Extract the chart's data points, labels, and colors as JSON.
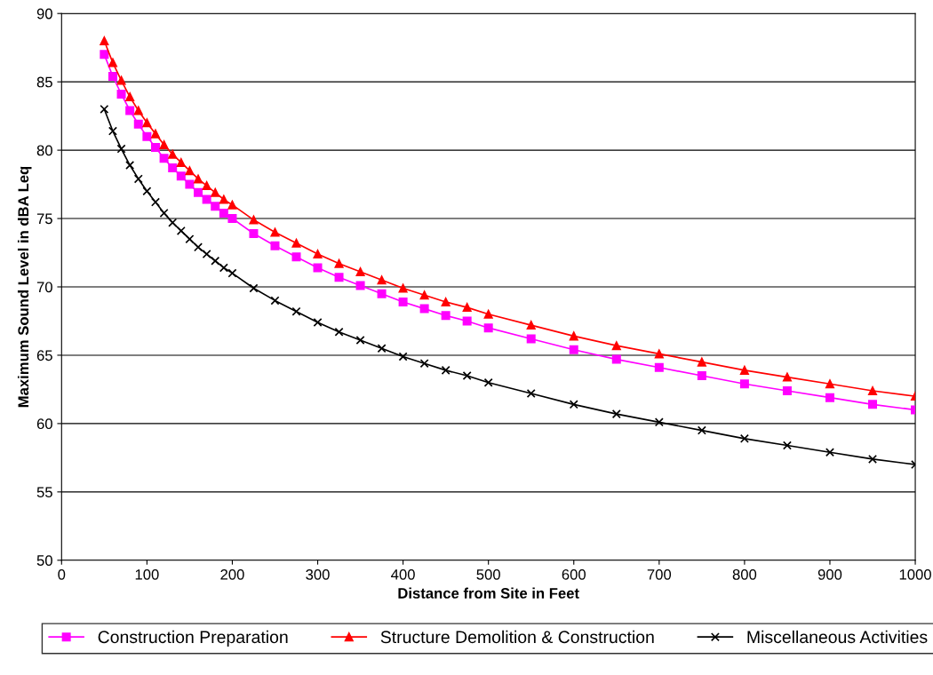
{
  "chart_data": {
    "type": "line",
    "xlabel": "Distance from Site in Feet",
    "ylabel": "Maximum Sound Level in dBA Leq",
    "x": [
      50,
      60,
      70,
      80,
      90,
      100,
      110,
      120,
      130,
      140,
      150,
      160,
      170,
      180,
      190,
      200,
      225,
      250,
      275,
      300,
      325,
      350,
      375,
      400,
      425,
      450,
      475,
      500,
      550,
      600,
      650,
      700,
      750,
      800,
      850,
      900,
      950,
      1000
    ],
    "series": [
      {
        "name": "Construction Preparation",
        "color": "#ff00ff",
        "marker": "square",
        "values": [
          87.0,
          85.4,
          84.1,
          82.9,
          81.9,
          81.0,
          80.2,
          79.4,
          78.7,
          78.1,
          77.5,
          76.9,
          76.4,
          75.9,
          75.4,
          75.0,
          73.9,
          73.0,
          72.2,
          71.4,
          70.7,
          70.1,
          69.5,
          68.9,
          68.4,
          67.9,
          67.5,
          67.0,
          66.2,
          65.4,
          64.7,
          64.1,
          63.5,
          62.9,
          62.4,
          61.9,
          61.4,
          61.0
        ]
      },
      {
        "name": "Structure Demolition & Construction",
        "color": "#ff0000",
        "marker": "triangle",
        "values": [
          88.0,
          86.4,
          85.1,
          83.9,
          82.9,
          82.0,
          81.2,
          80.4,
          79.7,
          79.1,
          78.5,
          77.9,
          77.4,
          76.9,
          76.4,
          76.0,
          74.9,
          74.0,
          73.2,
          72.4,
          71.7,
          71.1,
          70.5,
          69.9,
          69.4,
          68.9,
          68.5,
          68.0,
          67.2,
          66.4,
          65.7,
          65.1,
          64.5,
          63.9,
          63.4,
          62.9,
          62.4,
          62.0
        ]
      },
      {
        "name": "Miscellaneous Activities",
        "color": "#000000",
        "marker": "cross",
        "values": [
          83.0,
          81.4,
          80.1,
          78.9,
          77.9,
          77.0,
          76.2,
          75.4,
          74.7,
          74.1,
          73.5,
          72.9,
          72.4,
          71.9,
          71.4,
          71.0,
          69.9,
          69.0,
          68.2,
          67.4,
          66.7,
          66.1,
          65.5,
          64.9,
          64.4,
          63.9,
          63.5,
          63.0,
          62.2,
          61.4,
          60.7,
          60.1,
          59.5,
          58.9,
          58.4,
          57.9,
          57.4,
          57.0
        ]
      }
    ],
    "xlim": [
      0,
      1000
    ],
    "xticks": [
      0,
      100,
      200,
      300,
      400,
      500,
      600,
      700,
      800,
      900,
      1000
    ],
    "ylim": [
      50,
      90
    ],
    "yticks": [
      50,
      55,
      60,
      65,
      70,
      75,
      80,
      85,
      90
    ],
    "grid": "y",
    "legend": "bottom",
    "line_style": "solid"
  }
}
